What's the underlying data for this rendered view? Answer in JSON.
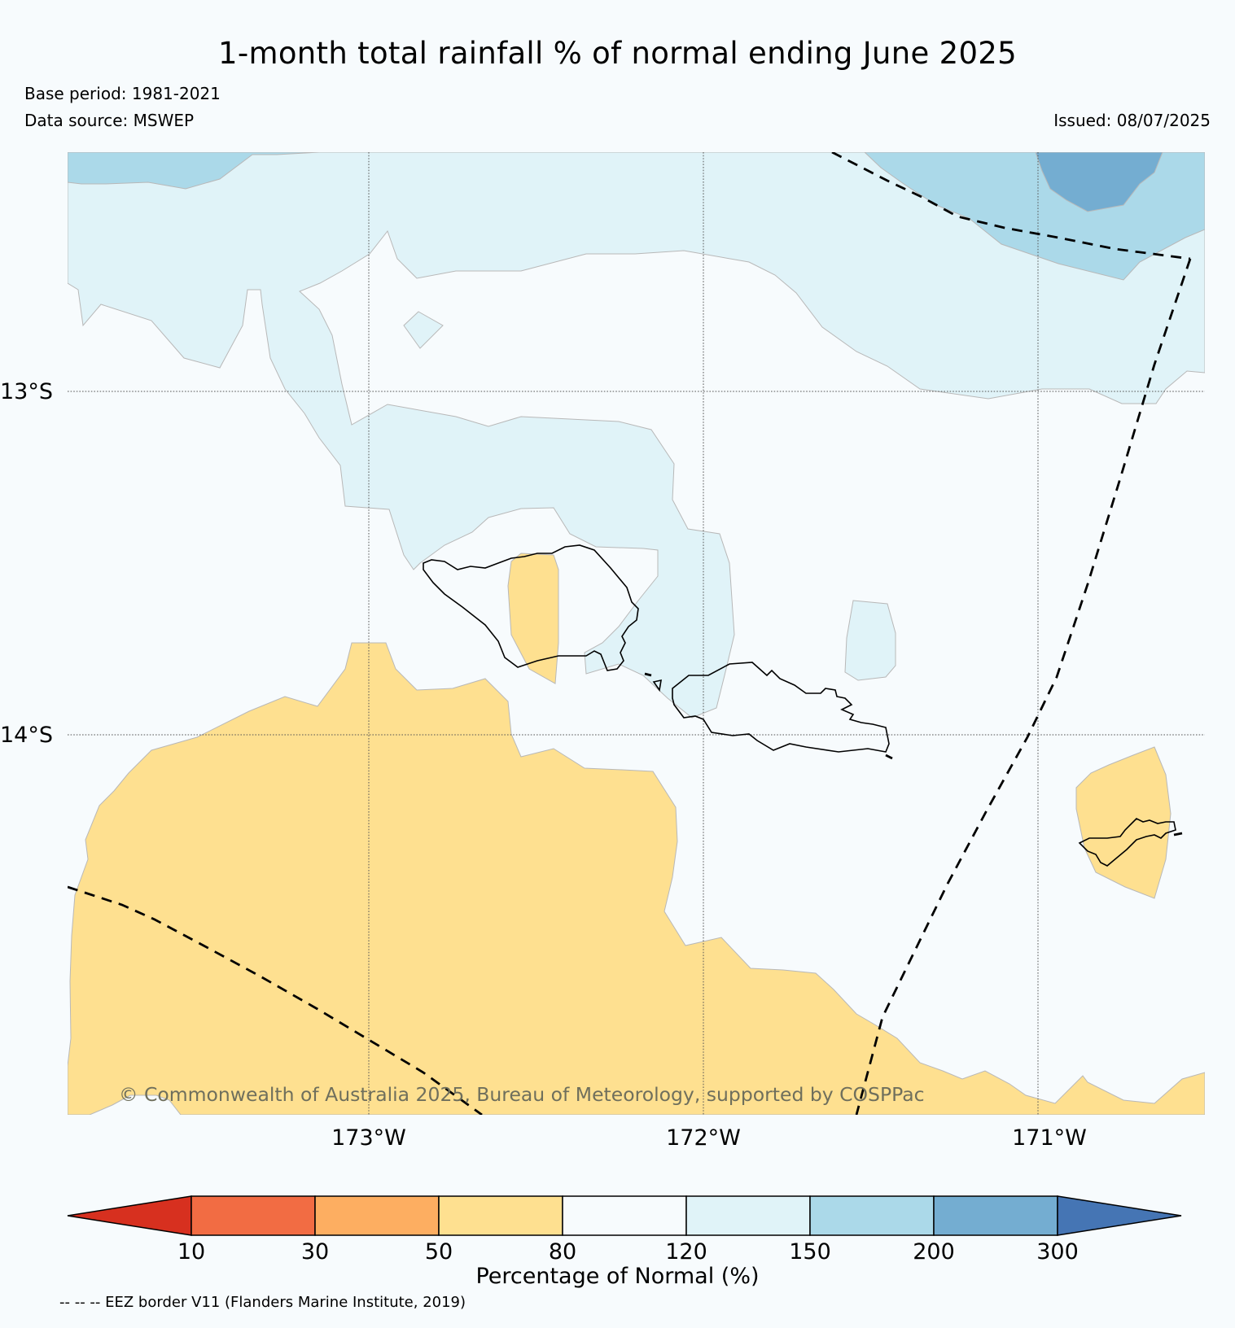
{
  "header": {
    "title": "1-month total rainfall % of normal ending June 2025",
    "base_period": "Base period: 1981-2021",
    "data_source": "Data source: MSWEP",
    "issued": "Issued: 08/07/2025"
  },
  "map": {
    "lat_labels": [
      "13°S",
      "14°S"
    ],
    "lon_labels": [
      "173°W",
      "172°W",
      "171°W"
    ],
    "copyright": "© Commonwealth of Australia 2025, Bureau of Meteorology, supported by COSPPac",
    "category_colors": {
      "under_10": "#d7301f",
      "10_30": "#f26c43",
      "30_50": "#fdae61",
      "50_80": "#fee090",
      "80_120": "#f7fbfd",
      "120_150": "#e0f3f8",
      "150_200": "#abd9e9",
      "200_300": "#74add1",
      "over_300": "#4575b4"
    }
  },
  "colorbar": {
    "ticks": [
      "10",
      "30",
      "50",
      "80",
      "120",
      "150",
      "200",
      "300"
    ],
    "title": "Percentage of Normal (%)"
  },
  "footnote": "-- -- -- EEZ border V11 (Flanders Marine Institute, 2019)"
}
